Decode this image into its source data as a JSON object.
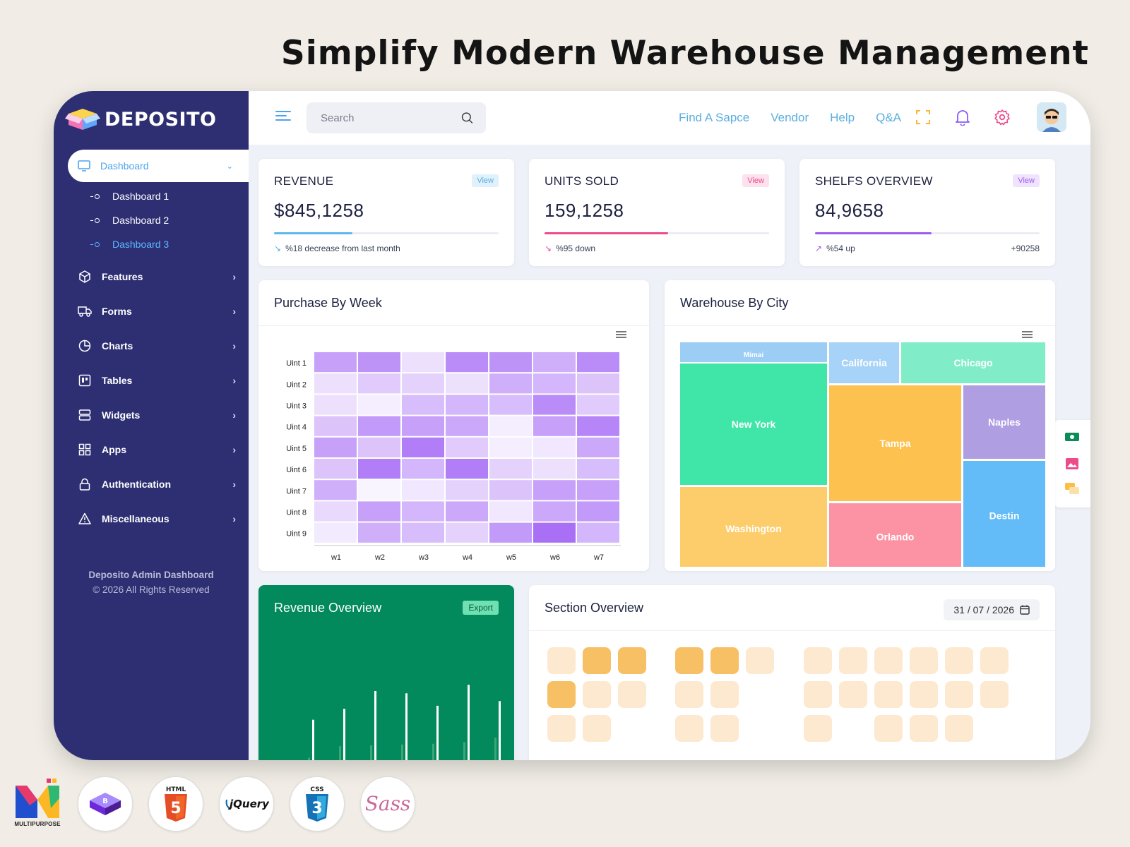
{
  "headline": "Simplify Modern Warehouse Management",
  "brand": {
    "name": "DEPOSITO"
  },
  "sidebar": {
    "active": {
      "label": "Dashboard"
    },
    "sub_items": [
      "Dashboard 1",
      "Dashboard 2",
      "Dashboard 3"
    ],
    "items": [
      "Features",
      "Forms",
      "Charts",
      "Tables",
      "Widgets",
      "Apps",
      "Authentication",
      "Miscellaneous"
    ],
    "footer_title": "Deposito Admin Dashboard",
    "footer_copy": "© 2026 All Rights Reserved"
  },
  "topbar": {
    "search_placeholder": "Search",
    "links": [
      "Find A Sapce",
      "Vendor",
      "Help",
      "Q&A"
    ]
  },
  "stats": [
    {
      "title": "REVENUE",
      "view": "View",
      "value": "$845,1258",
      "progress": 0.35,
      "note": "%18 decrease from last month",
      "extra": "",
      "color": "#5cb8f0",
      "view_bg": "#dff1fb",
      "view_fg": "#5aaedf",
      "trend": "#5aaedf"
    },
    {
      "title": "UNITS SOLD",
      "view": "View",
      "value": "159,1258",
      "progress": 0.55,
      "note": "%95 down",
      "extra": "",
      "color": "#ec4b8c",
      "view_bg": "#fde1ec",
      "view_fg": "#ec4b8c",
      "trend": "#ec4b8c"
    },
    {
      "title": "SHELFS OVERVIEW",
      "view": "View",
      "value": "84,9658",
      "progress": 0.52,
      "note": "%54 up",
      "extra": "+90258",
      "color": "#9c5bf0",
      "view_bg": "#efe3fd",
      "view_fg": "#9c5bf0",
      "trend": "#9c5bf0"
    }
  ],
  "panels": {
    "heatmap_title": "Purchase By Week",
    "treemap_title": "Warehouse By City",
    "revenue_title": "Revenue Overview",
    "export_label": "Export",
    "section_title": "Section Overview",
    "date_value": "31 / 07 / 2026"
  },
  "chart_data": [
    {
      "type": "heatmap",
      "title": "Purchase By Week",
      "x": [
        "w1",
        "w2",
        "w3",
        "w4",
        "w5",
        "w6",
        "w7"
      ],
      "y": [
        "Uint 1",
        "Uint 2",
        "Uint 3",
        "Uint 4",
        "Uint 5",
        "Uint 6",
        "Uint 7",
        "Uint 8",
        "Uint 9"
      ],
      "values": [
        [
          0.6,
          0.7,
          0.15,
          0.75,
          0.7,
          0.5,
          0.75
        ],
        [
          0.15,
          0.3,
          0.25,
          0.15,
          0.5,
          0.45,
          0.35
        ],
        [
          0.15,
          0.05,
          0.4,
          0.45,
          0.4,
          0.75,
          0.3
        ],
        [
          0.35,
          0.65,
          0.6,
          0.55,
          0.05,
          0.6,
          0.8
        ],
        [
          0.6,
          0.35,
          0.85,
          0.3,
          0.05,
          0.1,
          0.55
        ],
        [
          0.35,
          0.85,
          0.45,
          0.85,
          0.25,
          0.15,
          0.4
        ],
        [
          0.5,
          0.0,
          0.1,
          0.25,
          0.35,
          0.6,
          0.6
        ],
        [
          0.2,
          0.6,
          0.45,
          0.55,
          0.1,
          0.55,
          0.65
        ],
        [
          0.08,
          0.5,
          0.4,
          0.25,
          0.65,
          0.95,
          0.45
        ]
      ],
      "color": "#9d5cf5"
    },
    {
      "type": "treemap",
      "title": "Warehouse By City",
      "items": [
        {
          "name": "Mimai",
          "color": "#9bcdf5"
        },
        {
          "name": "California",
          "color": "#a6d3f7"
        },
        {
          "name": "Chicago",
          "color": "#80edc8"
        },
        {
          "name": "New York",
          "color": "#3fe6a7"
        },
        {
          "name": "Tampa",
          "color": "#fcc14f"
        },
        {
          "name": "Naples",
          "color": "#b09ee2"
        },
        {
          "name": "Washington",
          "color": "#fccd6a"
        },
        {
          "name": "Orlando",
          "color": "#fb93a5"
        },
        {
          "name": "Destin",
          "color": "#63bbf7"
        }
      ]
    },
    {
      "type": "bar",
      "title": "Revenue Overview",
      "series": [
        {
          "values": [
            0,
            0.63,
            0.77,
            1.0,
            0.97,
            0.81,
            1.08,
            0.87
          ]
        },
        {
          "values": [
            0.1,
            0.14,
            0.29,
            0.3,
            0.31,
            0.32,
            0.34,
            0.4
          ]
        }
      ]
    }
  ],
  "seats": {
    "groups": [
      {
        "rows": [
          [
            1,
            2,
            2
          ],
          [
            2,
            1,
            1
          ],
          [
            1,
            1
          ]
        ]
      },
      {
        "rows": [
          [
            2,
            2,
            1
          ],
          [
            1,
            1
          ],
          [
            1,
            1
          ]
        ]
      },
      {
        "rows": [
          [
            1,
            1,
            1,
            1,
            1,
            1
          ],
          [
            1,
            1,
            1,
            1,
            1,
            1
          ],
          [
            1,
            0,
            1,
            1,
            1
          ]
        ]
      }
    ],
    "colors": [
      "transparent",
      "#fde9cf",
      "#f8c065"
    ]
  },
  "tech_badges": [
    "bootstrap-icon",
    "html5-icon",
    "jquery-icon",
    "css3-icon",
    "sass-icon"
  ],
  "publisher_caption": "MULTIPURPOSE"
}
